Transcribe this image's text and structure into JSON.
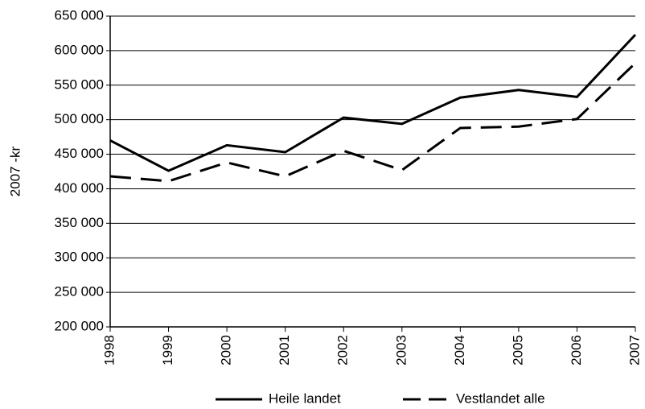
{
  "chart_data": {
    "type": "line",
    "ylabel": "2007 -kr",
    "categories": [
      "1998",
      "1999",
      "2000",
      "2001",
      "2002",
      "2003",
      "2004",
      "2005",
      "2006",
      "2007"
    ],
    "series": [
      {
        "name": "Heile landet",
        "color": "#000000",
        "dash": "solid",
        "values": [
          470000,
          426000,
          463000,
          453000,
          503000,
          494000,
          532000,
          543000,
          533000,
          623000
        ]
      },
      {
        "name": "Vestlandet alle",
        "color": "#000000",
        "dash": "dashed",
        "values": [
          418000,
          411000,
          438000,
          418000,
          455000,
          427000,
          488000,
          490000,
          501000,
          582000
        ]
      }
    ],
    "ylim": [
      200000,
      650000
    ],
    "yticks": [
      {
        "value": 200000,
        "label": "200 000"
      },
      {
        "value": 250000,
        "label": "250 000"
      },
      {
        "value": 300000,
        "label": "300 000"
      },
      {
        "value": 350000,
        "label": "350 000"
      },
      {
        "value": 400000,
        "label": "400 000"
      },
      {
        "value": 450000,
        "label": "450 000"
      },
      {
        "value": 500000,
        "label": "500 000"
      },
      {
        "value": 550000,
        "label": "550 000"
      },
      {
        "value": 600000,
        "label": "600 000"
      },
      {
        "value": 650000,
        "label": "650 000"
      }
    ],
    "grid": true,
    "legend": "bottom"
  }
}
